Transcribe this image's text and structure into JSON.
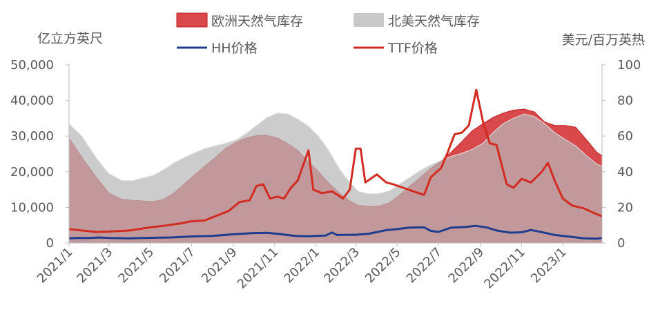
{
  "chart_data": {
    "type": "area+line",
    "x_dates": [
      "2021-01",
      "2021-02",
      "2021-03",
      "2021-04",
      "2021-05",
      "2021-06",
      "2021-07",
      "2021-08",
      "2021-09",
      "2021-10",
      "2021-11",
      "2021-12",
      "2022-01",
      "2022-02",
      "2022-03",
      "2022-04",
      "2022-05",
      "2022-06",
      "2022-07",
      "2022-08",
      "2022-09",
      "2022-10",
      "2022-11",
      "2022-12",
      "2023-01",
      "2023-02"
    ],
    "x_ticks": [
      "2021/1",
      "2021/3",
      "2021/5",
      "2021/7",
      "2021/9",
      "2021/11",
      "2022/1",
      "2022/3",
      "2022/5",
      "2022/7",
      "2022/9",
      "2022/11",
      "2023/1"
    ],
    "y_left": {
      "unit": "亿立方英尺",
      "lim": [
        0,
        50000
      ],
      "ticks": [
        "0",
        "10,000",
        "20,000",
        "30,000",
        "40,000",
        "50,000"
      ]
    },
    "y_right": {
      "unit": "美元/百万英热",
      "lim": [
        0,
        100
      ],
      "ticks": [
        "0",
        "20",
        "40",
        "60",
        "80",
        "100"
      ]
    },
    "legend": {
      "eu_storage": "欧洲天然气库存",
      "na_storage": "北美天然气库存",
      "hh_price": "HH价格",
      "ttf_price": "TTF价格"
    },
    "series": [
      {
        "key": "na_storage",
        "name": "北美天然气库存",
        "kind": "area",
        "axis": "left",
        "color": "#c9c9c9",
        "points": [
          [
            "2021-01-01",
            33500
          ],
          [
            "2021-01-20",
            30000
          ],
          [
            "2021-02-10",
            24000
          ],
          [
            "2021-03-01",
            19500
          ],
          [
            "2021-03-20",
            17600
          ],
          [
            "2021-04-05",
            17500
          ],
          [
            "2021-04-20",
            18300
          ],
          [
            "2021-05-05",
            19000
          ],
          [
            "2021-05-20",
            20500
          ],
          [
            "2021-06-05",
            22500
          ],
          [
            "2021-06-20",
            24000
          ],
          [
            "2021-07-05",
            25300
          ],
          [
            "2021-07-20",
            26500
          ],
          [
            "2021-08-05",
            27300
          ],
          [
            "2021-08-20",
            28000
          ],
          [
            "2021-09-05",
            29000
          ],
          [
            "2021-09-20",
            30800
          ],
          [
            "2021-10-05",
            33000
          ],
          [
            "2021-10-20",
            35200
          ],
          [
            "2021-11-05",
            36500
          ],
          [
            "2021-11-20",
            36300
          ],
          [
            "2021-12-05",
            34800
          ],
          [
            "2021-12-20",
            33000
          ],
          [
            "2022-01-05",
            30000
          ],
          [
            "2022-01-20",
            26000
          ],
          [
            "2022-02-05",
            20800
          ],
          [
            "2022-02-20",
            17000
          ],
          [
            "2022-03-05",
            14500
          ],
          [
            "2022-03-20",
            13800
          ],
          [
            "2022-04-05",
            13900
          ],
          [
            "2022-04-20",
            14700
          ],
          [
            "2022-05-05",
            16600
          ],
          [
            "2022-05-20",
            18500
          ],
          [
            "2022-06-05",
            20500
          ],
          [
            "2022-06-20",
            22000
          ],
          [
            "2022-07-05",
            23200
          ],
          [
            "2022-07-20",
            24300
          ],
          [
            "2022-08-05",
            25200
          ],
          [
            "2022-08-20",
            26300
          ],
          [
            "2022-09-05",
            28000
          ],
          [
            "2022-09-20",
            31000
          ],
          [
            "2022-10-05",
            33500
          ],
          [
            "2022-10-20",
            35000
          ],
          [
            "2022-11-05",
            36200
          ],
          [
            "2022-11-20",
            35500
          ],
          [
            "2022-12-05",
            33500
          ],
          [
            "2022-12-20",
            31000
          ],
          [
            "2023-01-05",
            29000
          ],
          [
            "2023-01-20",
            27300
          ],
          [
            "2023-02-05",
            24500
          ],
          [
            "2023-02-20",
            22200
          ],
          [
            "2023-02-28",
            21500
          ]
        ]
      },
      {
        "key": "eu_storage",
        "name": "欧洲天然气库存",
        "kind": "area",
        "axis": "left",
        "color": "#c0191f",
        "points": [
          [
            "2021-01-01",
            29500
          ],
          [
            "2021-01-20",
            24000
          ],
          [
            "2021-02-10",
            18500
          ],
          [
            "2021-03-01",
            14000
          ],
          [
            "2021-03-20",
            12300
          ],
          [
            "2021-04-05",
            12000
          ],
          [
            "2021-04-20",
            11800
          ],
          [
            "2021-05-05",
            11600
          ],
          [
            "2021-05-20",
            12200
          ],
          [
            "2021-06-05",
            14000
          ],
          [
            "2021-06-20",
            16500
          ],
          [
            "2021-07-05",
            19000
          ],
          [
            "2021-07-20",
            21500
          ],
          [
            "2021-08-05",
            24000
          ],
          [
            "2021-08-20",
            26500
          ],
          [
            "2021-09-05",
            28300
          ],
          [
            "2021-09-20",
            29500
          ],
          [
            "2021-10-05",
            30200
          ],
          [
            "2021-10-20",
            30300
          ],
          [
            "2021-11-05",
            29500
          ],
          [
            "2021-11-20",
            28000
          ],
          [
            "2021-12-05",
            26000
          ],
          [
            "2021-12-20",
            23000
          ],
          [
            "2022-01-05",
            20000
          ],
          [
            "2022-01-20",
            16800
          ],
          [
            "2022-02-05",
            14000
          ],
          [
            "2022-02-20",
            11800
          ],
          [
            "2022-03-05",
            10500
          ],
          [
            "2022-03-20",
            10300
          ],
          [
            "2022-04-05",
            10400
          ],
          [
            "2022-04-20",
            11300
          ],
          [
            "2022-05-05",
            13500
          ],
          [
            "2022-05-20",
            16000
          ],
          [
            "2022-06-05",
            18500
          ],
          [
            "2022-06-20",
            21000
          ],
          [
            "2022-07-05",
            23000
          ],
          [
            "2022-07-20",
            25500
          ],
          [
            "2022-08-05",
            28500
          ],
          [
            "2022-08-20",
            31500
          ],
          [
            "2022-09-05",
            33500
          ],
          [
            "2022-09-20",
            35300
          ],
          [
            "2022-10-05",
            36500
          ],
          [
            "2022-10-20",
            37300
          ],
          [
            "2022-11-05",
            37600
          ],
          [
            "2022-11-20",
            36800
          ],
          [
            "2022-12-05",
            34000
          ],
          [
            "2022-12-20",
            33000
          ],
          [
            "2023-01-05",
            33000
          ],
          [
            "2023-01-20",
            32500
          ],
          [
            "2023-02-05",
            29000
          ],
          [
            "2023-02-20",
            25500
          ],
          [
            "2023-02-28",
            24500
          ]
        ]
      },
      {
        "key": "hh_price",
        "name": "HH价格",
        "kind": "line",
        "axis": "right",
        "color": "#1f3d8f",
        "points": [
          [
            "2021-01-01",
            2.6
          ],
          [
            "2021-01-15",
            2.8
          ],
          [
            "2021-02-01",
            2.8
          ],
          [
            "2021-02-15",
            3.1
          ],
          [
            "2021-03-01",
            2.8
          ],
          [
            "2021-04-01",
            2.6
          ],
          [
            "2021-05-01",
            2.9
          ],
          [
            "2021-06-01",
            3.1
          ],
          [
            "2021-07-01",
            3.7
          ],
          [
            "2021-08-01",
            4.0
          ],
          [
            "2021-09-01",
            4.9
          ],
          [
            "2021-10-01",
            5.6
          ],
          [
            "2021-10-20",
            5.7
          ],
          [
            "2021-11-05",
            5.2
          ],
          [
            "2021-12-01",
            4.0
          ],
          [
            "2021-12-20",
            3.8
          ],
          [
            "2022-01-01",
            4.0
          ],
          [
            "2022-01-15",
            4.2
          ],
          [
            "2022-01-25",
            5.9
          ],
          [
            "2022-02-01",
            4.5
          ],
          [
            "2022-03-01",
            4.6
          ],
          [
            "2022-03-20",
            5.2
          ],
          [
            "2022-04-15",
            7.2
          ],
          [
            "2022-05-01",
            7.8
          ],
          [
            "2022-05-20",
            8.7
          ],
          [
            "2022-06-10",
            8.8
          ],
          [
            "2022-06-20",
            6.8
          ],
          [
            "2022-07-01",
            6.2
          ],
          [
            "2022-07-20",
            8.6
          ],
          [
            "2022-08-10",
            9.0
          ],
          [
            "2022-08-25",
            9.6
          ],
          [
            "2022-09-10",
            8.8
          ],
          [
            "2022-09-25",
            7.0
          ],
          [
            "2022-10-15",
            5.8
          ],
          [
            "2022-11-01",
            6.0
          ],
          [
            "2022-11-15",
            7.3
          ],
          [
            "2022-12-01",
            6.1
          ],
          [
            "2022-12-20",
            4.5
          ],
          [
            "2023-01-15",
            3.4
          ],
          [
            "2023-02-01",
            2.6
          ],
          [
            "2023-02-20",
            2.4
          ],
          [
            "2023-02-28",
            2.8
          ]
        ]
      },
      {
        "key": "ttf_price",
        "name": "TTF价格",
        "kind": "line",
        "axis": "right",
        "color": "#d32a22",
        "points": [
          [
            "2021-01-01",
            7.8
          ],
          [
            "2021-01-20",
            7.0
          ],
          [
            "2021-02-10",
            6.2
          ],
          [
            "2021-03-01",
            6.4
          ],
          [
            "2021-04-01",
            7.0
          ],
          [
            "2021-05-01",
            8.8
          ],
          [
            "2021-05-20",
            9.6
          ],
          [
            "2021-06-15",
            11.0
          ],
          [
            "2021-07-01",
            12.2
          ],
          [
            "2021-07-20",
            12.6
          ],
          [
            "2021-08-05",
            15.0
          ],
          [
            "2021-08-25",
            18.0
          ],
          [
            "2021-09-10",
            23.0
          ],
          [
            "2021-09-25",
            24.0
          ],
          [
            "2021-10-05",
            32.0
          ],
          [
            "2021-10-15",
            33.0
          ],
          [
            "2021-10-25",
            25.0
          ],
          [
            "2021-11-05",
            26.0
          ],
          [
            "2021-11-15",
            25.0
          ],
          [
            "2021-11-25",
            31.0
          ],
          [
            "2021-12-05",
            35.0
          ],
          [
            "2021-12-21",
            52.0
          ],
          [
            "2021-12-28",
            30.0
          ],
          [
            "2022-01-10",
            28.0
          ],
          [
            "2022-01-25",
            29.0
          ],
          [
            "2022-02-10",
            25.0
          ],
          [
            "2022-02-20",
            30.0
          ],
          [
            "2022-03-01",
            53.0
          ],
          [
            "2022-03-08",
            53.0
          ],
          [
            "2022-03-15",
            34.0
          ],
          [
            "2022-04-01",
            38.5
          ],
          [
            "2022-04-15",
            34.0
          ],
          [
            "2022-04-25",
            33.0
          ],
          [
            "2022-05-10",
            31.0
          ],
          [
            "2022-05-25",
            29.0
          ],
          [
            "2022-06-10",
            27.0
          ],
          [
            "2022-06-20",
            37.0
          ],
          [
            "2022-07-05",
            42.0
          ],
          [
            "2022-07-15",
            51.0
          ],
          [
            "2022-07-25",
            61.0
          ],
          [
            "2022-08-05",
            62.0
          ],
          [
            "2022-08-15",
            66.0
          ],
          [
            "2022-08-26",
            86.0
          ],
          [
            "2022-09-05",
            68.0
          ],
          [
            "2022-09-15",
            56.0
          ],
          [
            "2022-09-25",
            55.0
          ],
          [
            "2022-10-10",
            33.0
          ],
          [
            "2022-10-20",
            31.0
          ],
          [
            "2022-11-01",
            36.0
          ],
          [
            "2022-11-15",
            34.0
          ],
          [
            "2022-12-01",
            40.0
          ],
          [
            "2022-12-10",
            45.0
          ],
          [
            "2022-12-20",
            35.0
          ],
          [
            "2023-01-01",
            25.0
          ],
          [
            "2023-01-15",
            21.0
          ],
          [
            "2023-02-01",
            19.5
          ],
          [
            "2023-02-15",
            17.0
          ],
          [
            "2023-02-28",
            15.0
          ]
        ]
      }
    ]
  }
}
